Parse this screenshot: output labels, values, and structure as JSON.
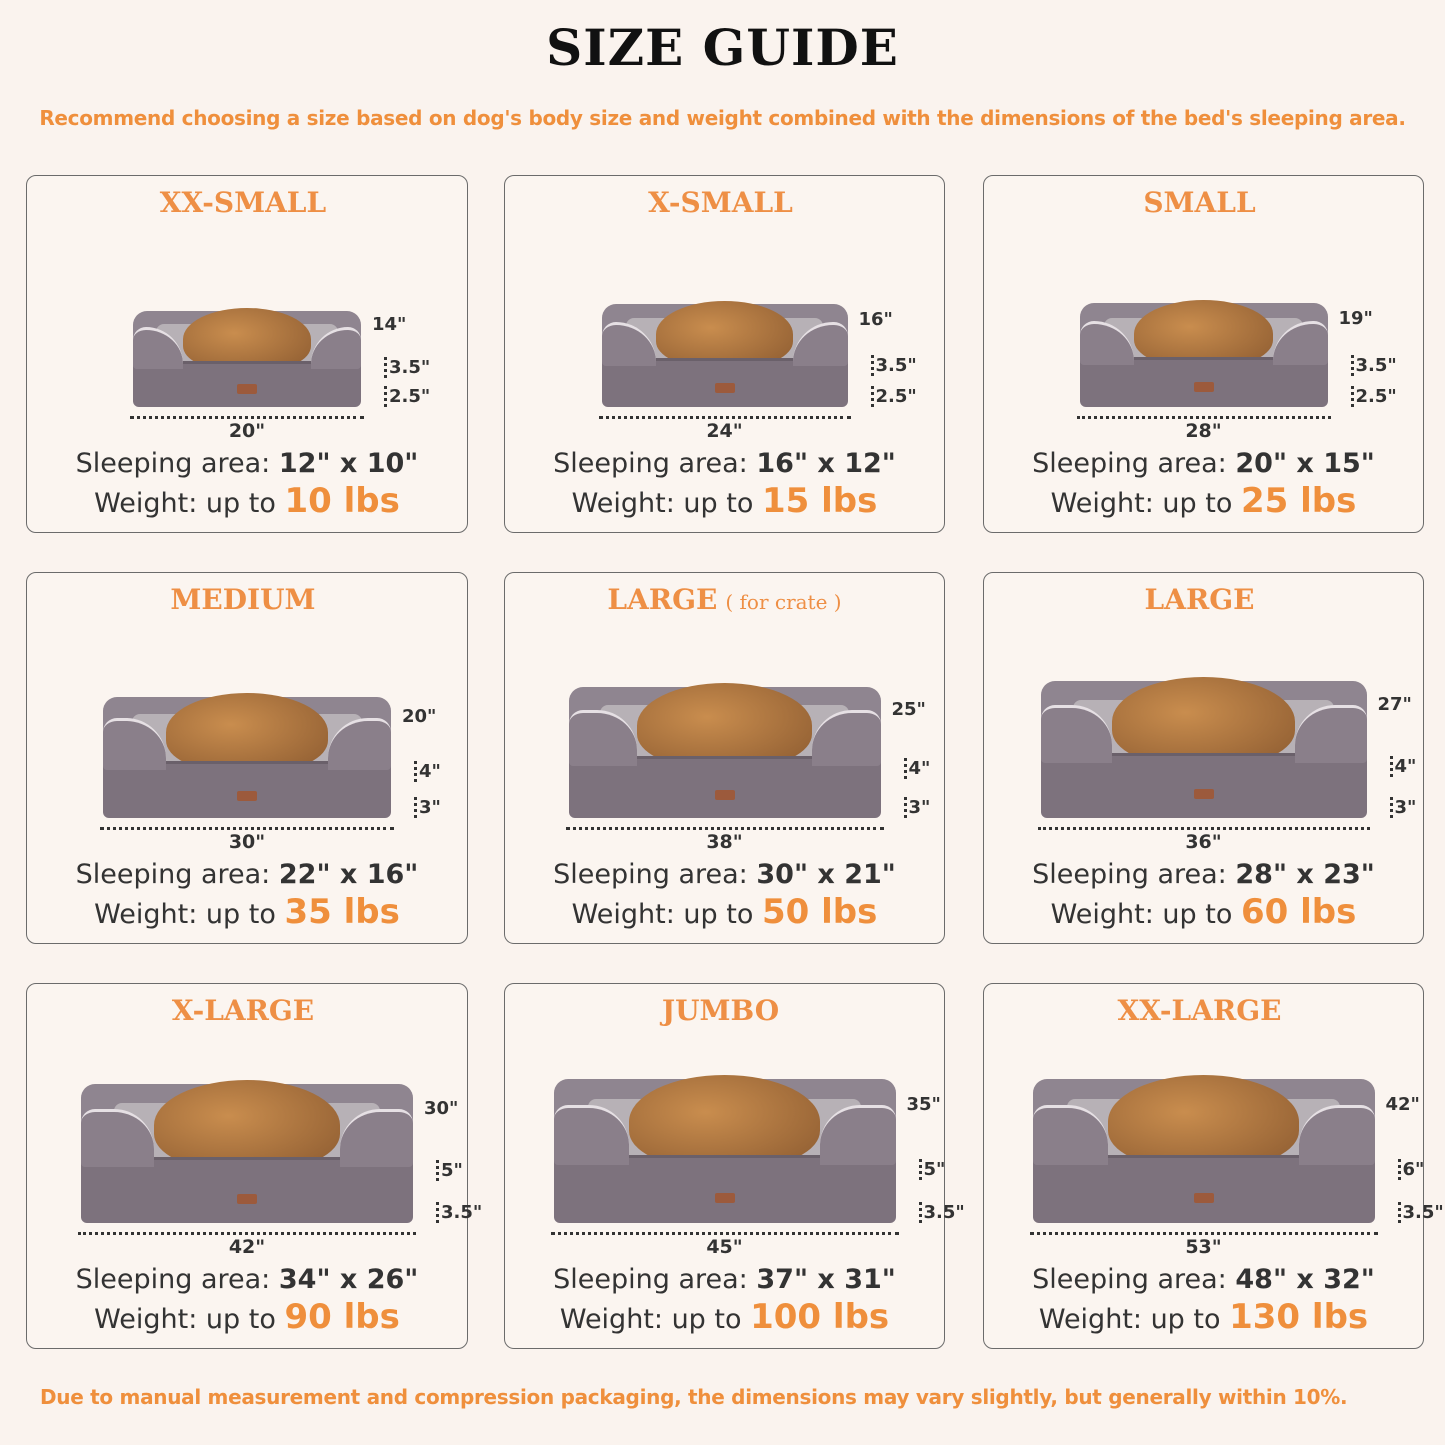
{
  "title": "SIZE GUIDE",
  "subtitle": "Recommend choosing a size based on dog's body size and weight combined with the dimensions of the bed's sleeping area.",
  "footer": "Due to manual measurement and compression packaging, the dimensions may vary slightly, but generally within 10%.",
  "sleeping_label": "Sleeping area:",
  "weight_label": "Weight: up to",
  "colors": {
    "accent": "#ef8f3c",
    "bed": "#8f8590",
    "border": "#6b6b6b",
    "background": "#faf3ee"
  },
  "sizes": [
    {
      "name": "XX-SMALL",
      "note": "",
      "pet": "cat",
      "length": "20\"",
      "depth": "14\"",
      "bolster": "3.5\"",
      "base": "2.5\"",
      "sleeping_area": "12\" x 10\"",
      "weight": "10 lbs"
    },
    {
      "name": "X-SMALL",
      "note": "",
      "pet": "dog",
      "length": "24\"",
      "depth": "16\"",
      "bolster": "3.5\"",
      "base": "2.5\"",
      "sleeping_area": "16\" x 12\"",
      "weight": "15 lbs"
    },
    {
      "name": "SMALL",
      "note": "",
      "pet": "dog",
      "length": "28\"",
      "depth": "19\"",
      "bolster": "3.5\"",
      "base": "2.5\"",
      "sleeping_area": "20\" x 15\"",
      "weight": "25 lbs"
    },
    {
      "name": "MEDIUM",
      "note": "",
      "pet": "dog",
      "length": "30\"",
      "depth": "20\"",
      "bolster": "4\"",
      "base": "3\"",
      "sleeping_area": "22\" x 16\"",
      "weight": "35 lbs"
    },
    {
      "name": "LARGE",
      "note": "( for crate )",
      "pet": "dog",
      "length": "38\"",
      "depth": "25\"",
      "bolster": "4\"",
      "base": "3\"",
      "sleeping_area": "30\" x 21\"",
      "weight": "50 lbs"
    },
    {
      "name": "LARGE",
      "note": "",
      "pet": "dog",
      "length": "36\"",
      "depth": "27\"",
      "bolster": "4\"",
      "base": "3\"",
      "sleeping_area": "28\" x 23\"",
      "weight": "60 lbs"
    },
    {
      "name": "X-LARGE",
      "note": "",
      "pet": "dog",
      "length": "42\"",
      "depth": "30\"",
      "bolster": "5\"",
      "base": "3.5\"",
      "sleeping_area": "34\" x 26\"",
      "weight": "90 lbs"
    },
    {
      "name": "JUMBO",
      "note": "",
      "pet": "dog",
      "length": "45\"",
      "depth": "35\"",
      "bolster": "5\"",
      "base": "3.5\"",
      "sleeping_area": "37\" x 31\"",
      "weight": "100 lbs"
    },
    {
      "name": "XX-LARGE",
      "note": "",
      "pet": "dog",
      "length": "53\"",
      "depth": "42\"",
      "bolster": "6\"",
      "base": "3.5\"",
      "sleeping_area": "48\" x 32\"",
      "weight": "130 lbs"
    }
  ]
}
